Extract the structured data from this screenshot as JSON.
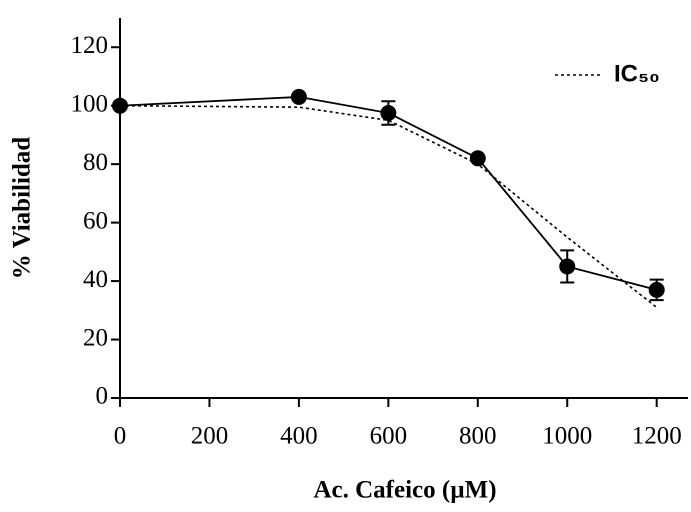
{
  "chart_data": {
    "type": "line",
    "x_label": "Ac. Cafeico (µM)",
    "y_label": "% Viabilidad",
    "x": [
      0,
      400,
      600,
      800,
      1000,
      1200
    ],
    "series": [
      {
        "name": null,
        "color": "#000000",
        "values": [
          100,
          103,
          97.5,
          82,
          45,
          37
        ],
        "errors": [
          0,
          0,
          4,
          0,
          5.5,
          3.5
        ],
        "style": "solid-markers"
      },
      {
        "name": "IC₅₀",
        "color": "#000000",
        "values": [
          100,
          99.5,
          95,
          80,
          55,
          31
        ],
        "style": "dotted"
      }
    ],
    "xlim": [
      0,
      1270
    ],
    "xticks": [
      0,
      200,
      400,
      600,
      800,
      1000,
      1200
    ],
    "ylim": [
      0,
      130
    ],
    "yticks": [
      0,
      20,
      40,
      60,
      80,
      100,
      120
    ],
    "legend": "upper-right"
  }
}
